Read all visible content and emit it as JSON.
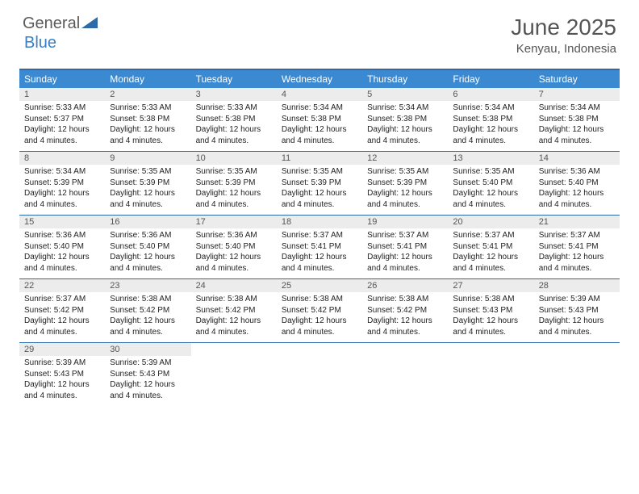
{
  "logo": {
    "word1": "General",
    "word2": "Blue",
    "icon_color": "#2f6aa8"
  },
  "title": "June 2025",
  "location": "Kenyau, Indonesia",
  "colors": {
    "header_bar": "#3b89d0",
    "header_rule": "#2f6aa8",
    "daynum_bg": "#ececec",
    "text_muted": "#555555",
    "text": "#222222",
    "bg": "#ffffff"
  },
  "typography": {
    "title_fontsize": 28,
    "location_fontsize": 15,
    "dayheader_fontsize": 12,
    "daynum_fontsize": 11,
    "body_fontsize": 10
  },
  "day_headers": [
    "Sunday",
    "Monday",
    "Tuesday",
    "Wednesday",
    "Thursday",
    "Friday",
    "Saturday"
  ],
  "labels": {
    "sunrise": "Sunrise:",
    "sunset": "Sunset:",
    "daylight": "Daylight:"
  },
  "weeks": [
    [
      {
        "n": "1",
        "sunrise": "5:33 AM",
        "sunset": "5:37 PM",
        "daylight": "12 hours and 4 minutes."
      },
      {
        "n": "2",
        "sunrise": "5:33 AM",
        "sunset": "5:38 PM",
        "daylight": "12 hours and 4 minutes."
      },
      {
        "n": "3",
        "sunrise": "5:33 AM",
        "sunset": "5:38 PM",
        "daylight": "12 hours and 4 minutes."
      },
      {
        "n": "4",
        "sunrise": "5:34 AM",
        "sunset": "5:38 PM",
        "daylight": "12 hours and 4 minutes."
      },
      {
        "n": "5",
        "sunrise": "5:34 AM",
        "sunset": "5:38 PM",
        "daylight": "12 hours and 4 minutes."
      },
      {
        "n": "6",
        "sunrise": "5:34 AM",
        "sunset": "5:38 PM",
        "daylight": "12 hours and 4 minutes."
      },
      {
        "n": "7",
        "sunrise": "5:34 AM",
        "sunset": "5:38 PM",
        "daylight": "12 hours and 4 minutes."
      }
    ],
    [
      {
        "n": "8",
        "sunrise": "5:34 AM",
        "sunset": "5:39 PM",
        "daylight": "12 hours and 4 minutes."
      },
      {
        "n": "9",
        "sunrise": "5:35 AM",
        "sunset": "5:39 PM",
        "daylight": "12 hours and 4 minutes."
      },
      {
        "n": "10",
        "sunrise": "5:35 AM",
        "sunset": "5:39 PM",
        "daylight": "12 hours and 4 minutes."
      },
      {
        "n": "11",
        "sunrise": "5:35 AM",
        "sunset": "5:39 PM",
        "daylight": "12 hours and 4 minutes."
      },
      {
        "n": "12",
        "sunrise": "5:35 AM",
        "sunset": "5:39 PM",
        "daylight": "12 hours and 4 minutes."
      },
      {
        "n": "13",
        "sunrise": "5:35 AM",
        "sunset": "5:40 PM",
        "daylight": "12 hours and 4 minutes."
      },
      {
        "n": "14",
        "sunrise": "5:36 AM",
        "sunset": "5:40 PM",
        "daylight": "12 hours and 4 minutes."
      }
    ],
    [
      {
        "n": "15",
        "sunrise": "5:36 AM",
        "sunset": "5:40 PM",
        "daylight": "12 hours and 4 minutes."
      },
      {
        "n": "16",
        "sunrise": "5:36 AM",
        "sunset": "5:40 PM",
        "daylight": "12 hours and 4 minutes."
      },
      {
        "n": "17",
        "sunrise": "5:36 AM",
        "sunset": "5:40 PM",
        "daylight": "12 hours and 4 minutes."
      },
      {
        "n": "18",
        "sunrise": "5:37 AM",
        "sunset": "5:41 PM",
        "daylight": "12 hours and 4 minutes."
      },
      {
        "n": "19",
        "sunrise": "5:37 AM",
        "sunset": "5:41 PM",
        "daylight": "12 hours and 4 minutes."
      },
      {
        "n": "20",
        "sunrise": "5:37 AM",
        "sunset": "5:41 PM",
        "daylight": "12 hours and 4 minutes."
      },
      {
        "n": "21",
        "sunrise": "5:37 AM",
        "sunset": "5:41 PM",
        "daylight": "12 hours and 4 minutes."
      }
    ],
    [
      {
        "n": "22",
        "sunrise": "5:37 AM",
        "sunset": "5:42 PM",
        "daylight": "12 hours and 4 minutes."
      },
      {
        "n": "23",
        "sunrise": "5:38 AM",
        "sunset": "5:42 PM",
        "daylight": "12 hours and 4 minutes."
      },
      {
        "n": "24",
        "sunrise": "5:38 AM",
        "sunset": "5:42 PM",
        "daylight": "12 hours and 4 minutes."
      },
      {
        "n": "25",
        "sunrise": "5:38 AM",
        "sunset": "5:42 PM",
        "daylight": "12 hours and 4 minutes."
      },
      {
        "n": "26",
        "sunrise": "5:38 AM",
        "sunset": "5:42 PM",
        "daylight": "12 hours and 4 minutes."
      },
      {
        "n": "27",
        "sunrise": "5:38 AM",
        "sunset": "5:43 PM",
        "daylight": "12 hours and 4 minutes."
      },
      {
        "n": "28",
        "sunrise": "5:39 AM",
        "sunset": "5:43 PM",
        "daylight": "12 hours and 4 minutes."
      }
    ],
    [
      {
        "n": "29",
        "sunrise": "5:39 AM",
        "sunset": "5:43 PM",
        "daylight": "12 hours and 4 minutes."
      },
      {
        "n": "30",
        "sunrise": "5:39 AM",
        "sunset": "5:43 PM",
        "daylight": "12 hours and 4 minutes."
      },
      null,
      null,
      null,
      null,
      null
    ]
  ]
}
